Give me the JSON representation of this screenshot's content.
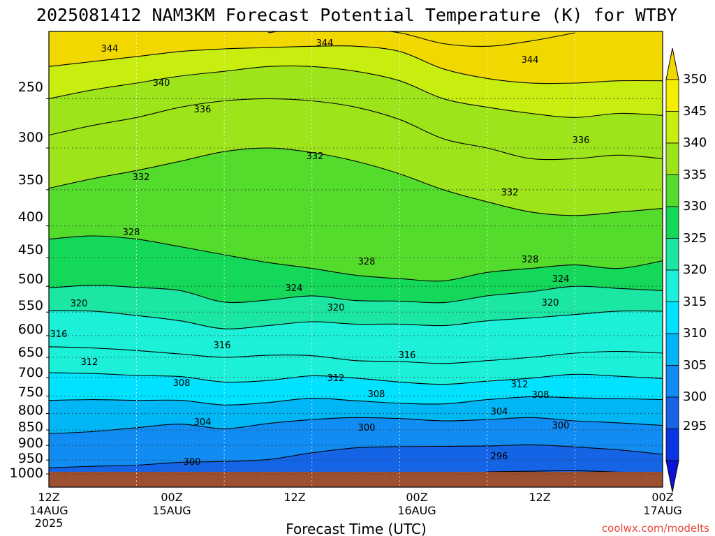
{
  "chart_data": {
    "type": "heatmap",
    "title": "2025081412 NAM3KM Forecast Potential Temperature (K) for WTBY",
    "xlabel": "Forecast Time (UTC)",
    "credit": "coolwx.com/modelts",
    "y_ticks": [
      "250",
      "300",
      "350",
      "400",
      "450",
      "500",
      "550",
      "600",
      "650",
      "700",
      "750",
      "800",
      "850",
      "900",
      "950",
      "1000"
    ],
    "x_ticks": [
      {
        "line1": "12Z",
        "line2": "14AUG",
        "line3": "2025"
      },
      {
        "line1": "00Z",
        "line2": "15AUG",
        "line3": ""
      },
      {
        "line1": "12Z",
        "line2": "",
        "line3": ""
      },
      {
        "line1": "00Z",
        "line2": "16AUG",
        "line3": ""
      },
      {
        "line1": "12Z",
        "line2": "",
        "line3": ""
      },
      {
        "line1": "00Z",
        "line2": "17AUG",
        "line3": ""
      }
    ],
    "colorbar": {
      "levels": [
        "350",
        "345",
        "340",
        "335",
        "330",
        "325",
        "320",
        "315",
        "310",
        "305",
        "300",
        "295"
      ],
      "colors": [
        "#f0d800",
        "#f5ee00",
        "#c8ee10",
        "#9ee41a",
        "#54dc2c",
        "#14d85a",
        "#1ce6a4",
        "#1cf0d8",
        "#00e2ff",
        "#00b6f4",
        "#108cf2",
        "#1664e6",
        "#0a34e0",
        "#0a14d6"
      ]
    },
    "contour_labels": [
      "344",
      "344",
      "344",
      "340",
      "336",
      "336",
      "332",
      "332",
      "332",
      "328",
      "328",
      "328",
      "324",
      "324",
      "320",
      "320",
      "320",
      "316",
      "316",
      "316",
      "312",
      "312",
      "312",
      "308",
      "308",
      "308",
      "304",
      "304",
      "300",
      "300",
      "300",
      "296"
    ],
    "series": [
      {
        "value": 296,
        "points": [
          [
            60,
            992
          ],
          [
            66,
            990
          ],
          [
            72,
            988
          ],
          [
            78,
            993
          ],
          [
            84,
            996
          ]
        ]
      },
      {
        "value": 300,
        "points": [
          [
            0,
            978
          ],
          [
            6,
            972
          ],
          [
            12,
            968
          ],
          [
            18,
            958
          ],
          [
            24,
            955
          ],
          [
            30,
            948
          ],
          [
            36,
            925
          ],
          [
            42,
            908
          ],
          [
            48,
            904
          ],
          [
            54,
            903
          ],
          [
            60,
            902
          ],
          [
            66,
            898
          ],
          [
            72,
            905
          ],
          [
            78,
            915
          ],
          [
            84,
            930
          ]
        ]
      },
      {
        "value": 304,
        "points": [
          [
            0,
            862
          ],
          [
            6,
            855
          ],
          [
            12,
            843
          ],
          [
            18,
            832
          ],
          [
            24,
            846
          ],
          [
            30,
            830
          ],
          [
            36,
            818
          ],
          [
            42,
            812
          ],
          [
            48,
            815
          ],
          [
            54,
            822
          ],
          [
            60,
            818
          ],
          [
            66,
            812
          ],
          [
            72,
            822
          ],
          [
            78,
            828
          ],
          [
            84,
            836
          ]
        ]
      },
      {
        "value": 308,
        "points": [
          [
            0,
            762
          ],
          [
            6,
            760
          ],
          [
            12,
            762
          ],
          [
            18,
            762
          ],
          [
            24,
            775
          ],
          [
            30,
            768
          ],
          [
            36,
            756
          ],
          [
            42,
            763
          ],
          [
            48,
            770
          ],
          [
            54,
            772
          ],
          [
            60,
            760
          ],
          [
            66,
            752
          ],
          [
            72,
            755
          ],
          [
            78,
            757
          ],
          [
            84,
            760
          ]
        ]
      },
      {
        "value": 312,
        "points": [
          [
            0,
            688
          ],
          [
            6,
            690
          ],
          [
            12,
            695
          ],
          [
            18,
            698
          ],
          [
            24,
            712
          ],
          [
            30,
            708
          ],
          [
            36,
            696
          ],
          [
            42,
            702
          ],
          [
            48,
            712
          ],
          [
            54,
            718
          ],
          [
            60,
            710
          ],
          [
            66,
            702
          ],
          [
            72,
            692
          ],
          [
            78,
            697
          ],
          [
            84,
            703
          ]
        ]
      },
      {
        "value": 316,
        "points": [
          [
            0,
            625
          ],
          [
            6,
            628
          ],
          [
            12,
            634
          ],
          [
            18,
            642
          ],
          [
            24,
            650
          ],
          [
            30,
            645
          ],
          [
            36,
            646
          ],
          [
            42,
            658
          ],
          [
            48,
            660
          ],
          [
            54,
            665
          ],
          [
            60,
            658
          ],
          [
            66,
            650
          ],
          [
            72,
            640
          ],
          [
            78,
            636
          ],
          [
            84,
            640
          ]
        ]
      },
      {
        "value": 320,
        "points": [
          [
            0,
            547
          ],
          [
            6,
            548
          ],
          [
            12,
            557
          ],
          [
            18,
            568
          ],
          [
            24,
            585
          ],
          [
            30,
            578
          ],
          [
            36,
            570
          ],
          [
            42,
            575
          ],
          [
            48,
            575
          ],
          [
            54,
            578
          ],
          [
            60,
            568
          ],
          [
            66,
            562
          ],
          [
            72,
            555
          ],
          [
            78,
            548
          ],
          [
            84,
            548
          ]
        ]
      },
      {
        "value": 324,
        "points": [
          [
            0,
            503
          ],
          [
            6,
            498
          ],
          [
            12,
            502
          ],
          [
            18,
            508
          ],
          [
            24,
            530
          ],
          [
            30,
            526
          ],
          [
            36,
            518
          ],
          [
            42,
            527
          ],
          [
            48,
            528
          ],
          [
            54,
            531
          ],
          [
            60,
            518
          ],
          [
            66,
            510
          ],
          [
            72,
            500
          ],
          [
            78,
            504
          ],
          [
            84,
            508
          ]
        ]
      },
      {
        "value": 328,
        "points": [
          [
            0,
            420
          ],
          [
            6,
            415
          ],
          [
            12,
            420
          ],
          [
            18,
            432
          ],
          [
            24,
            445
          ],
          [
            30,
            458
          ],
          [
            36,
            468
          ],
          [
            42,
            480
          ],
          [
            48,
            486
          ],
          [
            54,
            490
          ],
          [
            60,
            475
          ],
          [
            66,
            468
          ],
          [
            72,
            462
          ],
          [
            78,
            468
          ],
          [
            84,
            455
          ]
        ]
      },
      {
        "value": 332,
        "points": [
          [
            0,
            348
          ],
          [
            6,
            336
          ],
          [
            12,
            326
          ],
          [
            18,
            315
          ],
          [
            24,
            304
          ],
          [
            30,
            300
          ],
          [
            36,
            305
          ],
          [
            42,
            315
          ],
          [
            48,
            330
          ],
          [
            54,
            350
          ],
          [
            60,
            366
          ],
          [
            66,
            380
          ],
          [
            72,
            385
          ],
          [
            78,
            380
          ],
          [
            84,
            375
          ]
        ]
      },
      {
        "value": 336,
        "points": [
          [
            0,
            286
          ],
          [
            6,
            276
          ],
          [
            12,
            268
          ],
          [
            18,
            258
          ],
          [
            24,
            252
          ],
          [
            30,
            250
          ],
          [
            36,
            252
          ],
          [
            42,
            258
          ],
          [
            48,
            270
          ],
          [
            54,
            290
          ],
          [
            60,
            300
          ],
          [
            66,
            312
          ],
          [
            72,
            312
          ],
          [
            78,
            308
          ],
          [
            84,
            312
          ]
        ]
      },
      {
        "value": 340,
        "points": [
          [
            0,
            250
          ],
          [
            6,
            242
          ],
          [
            12,
            236
          ],
          [
            18,
            230
          ],
          [
            24,
            226
          ],
          [
            30,
            222
          ],
          [
            36,
            222
          ],
          [
            42,
            226
          ],
          [
            48,
            234
          ],
          [
            54,
            250
          ],
          [
            60,
            258
          ],
          [
            66,
            264
          ],
          [
            72,
            268
          ],
          [
            78,
            264
          ],
          [
            84,
            266
          ]
        ]
      },
      {
        "value": 344,
        "points": [
          [
            0,
            222
          ],
          [
            6,
            218
          ],
          [
            12,
            214
          ],
          [
            18,
            210
          ],
          [
            24,
            208
          ],
          [
            30,
            207
          ],
          [
            36,
            206
          ],
          [
            42,
            206
          ],
          [
            48,
            210
          ],
          [
            54,
            224
          ],
          [
            60,
            232
          ],
          [
            66,
            236
          ],
          [
            72,
            236
          ],
          [
            78,
            234
          ],
          [
            84,
            234
          ]
        ]
      },
      {
        "value": 348,
        "points": [
          [
            30,
            196
          ],
          [
            36,
            192
          ],
          [
            42,
            193
          ],
          [
            48,
            196
          ],
          [
            54,
            204
          ],
          [
            60,
            206
          ],
          [
            66,
            202
          ],
          [
            72,
            196
          ]
        ]
      }
    ],
    "x_range_hours": [
      0,
      84
    ],
    "y_range_hpa": [
      1050,
      195
    ],
    "y_scale": "log",
    "grid": true,
    "surface_fill": "#9c5030"
  }
}
